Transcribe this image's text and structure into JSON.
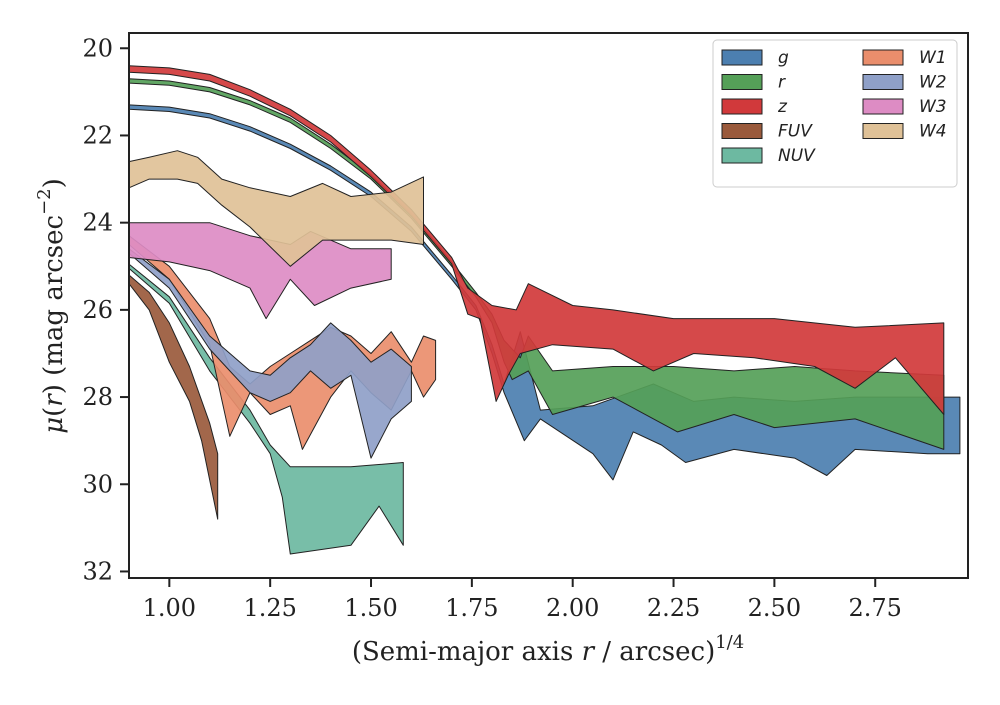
{
  "chart_data": {
    "type": "area",
    "xlabel": "(Semi-major axis r / arcsec)^{1/4}",
    "xlabel_parts": {
      "prefix": "(Semi-major axis ",
      "var": "r",
      "suffix": " / arcsec)",
      "sup": "1/4"
    },
    "ylabel": "μ(r) (mag arcsec^−2)",
    "ylabel_parts": {
      "mu": "μ",
      "open": "(",
      "var": "r",
      "close_and_units": ") (mag arcsec",
      "sup": "−2",
      "end": ")"
    },
    "xlim": [
      0.9,
      2.98
    ],
    "ylim": [
      32.15,
      19.65
    ],
    "y_inverted": true,
    "xticks": [
      1.0,
      1.25,
      1.5,
      1.75,
      2.0,
      2.25,
      2.5,
      2.75
    ],
    "xtick_labels": [
      "1.00",
      "1.25",
      "1.50",
      "1.75",
      "2.00",
      "2.25",
      "2.50",
      "2.75"
    ],
    "yticks": [
      20,
      22,
      24,
      26,
      28,
      30,
      32
    ],
    "ytick_labels": [
      "20",
      "22",
      "24",
      "26",
      "28",
      "30",
      "32"
    ],
    "grid": false,
    "legend_position": "top-right",
    "legend_columns": 2,
    "series": [
      {
        "name": "g",
        "color": "#4c7fb0",
        "upper": [
          [
            0.9,
            21.3
          ],
          [
            1.0,
            21.35
          ],
          [
            1.1,
            21.5
          ],
          [
            1.2,
            21.8
          ],
          [
            1.3,
            22.2
          ],
          [
            1.4,
            22.7
          ],
          [
            1.5,
            23.3
          ],
          [
            1.6,
            24.1
          ],
          [
            1.7,
            25.2
          ],
          [
            1.76,
            25.9
          ],
          [
            1.8,
            26.8
          ],
          [
            1.83,
            27.7
          ],
          [
            1.87,
            26.5
          ],
          [
            1.92,
            28.3
          ],
          [
            2.05,
            28.2
          ],
          [
            2.2,
            27.7
          ],
          [
            2.3,
            28.1
          ],
          [
            2.4,
            28.0
          ],
          [
            2.55,
            28.1
          ],
          [
            2.7,
            28.0
          ],
          [
            2.88,
            28.0
          ],
          [
            2.92,
            28.0
          ],
          [
            2.96,
            28.0
          ]
        ],
        "lower": [
          [
            0.9,
            21.4
          ],
          [
            1.0,
            21.45
          ],
          [
            1.1,
            21.6
          ],
          [
            1.2,
            21.9
          ],
          [
            1.3,
            22.3
          ],
          [
            1.4,
            22.8
          ],
          [
            1.5,
            23.4
          ],
          [
            1.6,
            24.2
          ],
          [
            1.7,
            25.3
          ],
          [
            1.76,
            26.0
          ],
          [
            1.8,
            27.0
          ],
          [
            1.83,
            27.9
          ],
          [
            1.88,
            29.0
          ],
          [
            1.92,
            28.5
          ],
          [
            2.05,
            29.3
          ],
          [
            2.1,
            29.9
          ],
          [
            2.15,
            28.8
          ],
          [
            2.22,
            29.1
          ],
          [
            2.28,
            29.5
          ],
          [
            2.4,
            29.2
          ],
          [
            2.55,
            29.4
          ],
          [
            2.63,
            29.8
          ],
          [
            2.7,
            29.2
          ],
          [
            2.88,
            29.3
          ],
          [
            2.96,
            29.3
          ]
        ]
      },
      {
        "name": "r",
        "color": "#55a058",
        "upper": [
          [
            0.9,
            20.7
          ],
          [
            1.0,
            20.75
          ],
          [
            1.1,
            20.9
          ],
          [
            1.2,
            21.2
          ],
          [
            1.3,
            21.6
          ],
          [
            1.4,
            22.2
          ],
          [
            1.5,
            22.9
          ],
          [
            1.6,
            23.8
          ],
          [
            1.7,
            24.9
          ],
          [
            1.76,
            25.6
          ],
          [
            1.8,
            26.1
          ],
          [
            1.83,
            26.7
          ],
          [
            1.87,
            27.1
          ],
          [
            1.89,
            26.6
          ],
          [
            1.95,
            27.4
          ],
          [
            2.1,
            27.3
          ],
          [
            2.25,
            27.3
          ],
          [
            2.4,
            27.4
          ],
          [
            2.55,
            27.3
          ],
          [
            2.7,
            27.4
          ],
          [
            2.92,
            27.5
          ]
        ],
        "lower": [
          [
            0.9,
            20.8
          ],
          [
            1.0,
            20.85
          ],
          [
            1.1,
            21.0
          ],
          [
            1.2,
            21.3
          ],
          [
            1.3,
            21.7
          ],
          [
            1.4,
            22.3
          ],
          [
            1.5,
            23.0
          ],
          [
            1.6,
            23.9
          ],
          [
            1.7,
            25.0
          ],
          [
            1.76,
            25.7
          ],
          [
            1.8,
            26.3
          ],
          [
            1.83,
            27.2
          ],
          [
            1.85,
            27.6
          ],
          [
            1.89,
            27.4
          ],
          [
            1.95,
            28.4
          ],
          [
            2.1,
            28.0
          ],
          [
            2.26,
            28.8
          ],
          [
            2.4,
            28.4
          ],
          [
            2.5,
            28.7
          ],
          [
            2.7,
            28.5
          ],
          [
            2.92,
            29.2
          ]
        ]
      },
      {
        "name": "z",
        "color": "#d1393b",
        "upper": [
          [
            0.9,
            20.4
          ],
          [
            1.0,
            20.45
          ],
          [
            1.1,
            20.6
          ],
          [
            1.2,
            20.95
          ],
          [
            1.3,
            21.4
          ],
          [
            1.4,
            22.0
          ],
          [
            1.5,
            22.8
          ],
          [
            1.6,
            23.7
          ],
          [
            1.7,
            24.8
          ],
          [
            1.74,
            25.5
          ],
          [
            1.8,
            25.9
          ],
          [
            1.86,
            26.0
          ],
          [
            1.89,
            25.4
          ],
          [
            2.0,
            25.9
          ],
          [
            2.1,
            26.0
          ],
          [
            2.25,
            26.2
          ],
          [
            2.5,
            26.2
          ],
          [
            2.7,
            26.4
          ],
          [
            2.92,
            26.3
          ]
        ],
        "lower": [
          [
            0.9,
            20.55
          ],
          [
            1.0,
            20.6
          ],
          [
            1.1,
            20.75
          ],
          [
            1.2,
            21.1
          ],
          [
            1.3,
            21.55
          ],
          [
            1.4,
            22.15
          ],
          [
            1.5,
            22.95
          ],
          [
            1.6,
            23.85
          ],
          [
            1.7,
            24.95
          ],
          [
            1.74,
            26.1
          ],
          [
            1.77,
            26.2
          ],
          [
            1.81,
            28.1
          ],
          [
            1.84,
            27.5
          ],
          [
            1.87,
            27.0
          ],
          [
            1.95,
            26.8
          ],
          [
            2.1,
            26.9
          ],
          [
            2.2,
            27.4
          ],
          [
            2.3,
            27.0
          ],
          [
            2.45,
            27.1
          ],
          [
            2.6,
            27.3
          ],
          [
            2.7,
            27.8
          ],
          [
            2.8,
            27.1
          ],
          [
            2.92,
            28.4
          ]
        ]
      },
      {
        "name": "FUV",
        "color": "#9a5a3c",
        "upper": [
          [
            0.9,
            25.2
          ],
          [
            0.95,
            25.6
          ],
          [
            1.0,
            26.3
          ],
          [
            1.05,
            27.3
          ],
          [
            1.1,
            28.6
          ],
          [
            1.12,
            29.3
          ]
        ],
        "lower": [
          [
            0.9,
            25.4
          ],
          [
            0.95,
            26.0
          ],
          [
            1.0,
            27.2
          ],
          [
            1.05,
            28.1
          ],
          [
            1.08,
            29.0
          ],
          [
            1.12,
            30.8
          ]
        ]
      },
      {
        "name": "NUV",
        "color": "#6db9a1",
        "upper": [
          [
            0.9,
            24.95
          ],
          [
            1.0,
            25.7
          ],
          [
            1.1,
            27.1
          ],
          [
            1.2,
            28.3
          ],
          [
            1.25,
            29.1
          ],
          [
            1.3,
            29.6
          ],
          [
            1.45,
            29.6
          ],
          [
            1.58,
            29.5
          ]
        ],
        "lower": [
          [
            0.9,
            25.05
          ],
          [
            1.0,
            25.85
          ],
          [
            1.1,
            27.4
          ],
          [
            1.2,
            28.6
          ],
          [
            1.25,
            29.3
          ],
          [
            1.28,
            30.3
          ],
          [
            1.3,
            31.6
          ],
          [
            1.45,
            31.4
          ],
          [
            1.52,
            30.5
          ],
          [
            1.58,
            31.4
          ]
        ]
      },
      {
        "name": "W1",
        "color": "#ea8e6c",
        "upper": [
          [
            0.9,
            24.3
          ],
          [
            1.0,
            25.0
          ],
          [
            1.1,
            26.2
          ],
          [
            1.15,
            27.3
          ],
          [
            1.2,
            27.7
          ],
          [
            1.25,
            27.3
          ],
          [
            1.3,
            27.0
          ],
          [
            1.35,
            26.7
          ],
          [
            1.4,
            26.4
          ],
          [
            1.45,
            26.6
          ],
          [
            1.5,
            27.0
          ],
          [
            1.55,
            26.5
          ],
          [
            1.6,
            27.2
          ],
          [
            1.63,
            26.6
          ],
          [
            1.66,
            26.7
          ]
        ],
        "lower": [
          [
            0.9,
            24.5
          ],
          [
            1.0,
            25.3
          ],
          [
            1.1,
            26.8
          ],
          [
            1.15,
            28.9
          ],
          [
            1.2,
            27.9
          ],
          [
            1.25,
            28.4
          ],
          [
            1.3,
            28.2
          ],
          [
            1.33,
            29.2
          ],
          [
            1.4,
            28.0
          ],
          [
            1.45,
            27.4
          ],
          [
            1.5,
            27.9
          ],
          [
            1.55,
            28.3
          ],
          [
            1.6,
            27.4
          ],
          [
            1.63,
            28.0
          ],
          [
            1.66,
            27.6
          ]
        ]
      },
      {
        "name": "W2",
        "color": "#8fa0c8",
        "upper": [
          [
            0.9,
            24.6
          ],
          [
            1.0,
            25.3
          ],
          [
            1.1,
            26.6
          ],
          [
            1.2,
            27.4
          ],
          [
            1.25,
            27.5
          ],
          [
            1.3,
            27.1
          ],
          [
            1.35,
            26.8
          ],
          [
            1.4,
            26.3
          ],
          [
            1.45,
            26.7
          ],
          [
            1.5,
            27.2
          ],
          [
            1.55,
            26.9
          ],
          [
            1.6,
            27.3
          ]
        ],
        "lower": [
          [
            0.9,
            24.7
          ],
          [
            1.0,
            25.5
          ],
          [
            1.1,
            26.9
          ],
          [
            1.2,
            27.9
          ],
          [
            1.25,
            28.1
          ],
          [
            1.3,
            27.9
          ],
          [
            1.35,
            27.4
          ],
          [
            1.4,
            27.8
          ],
          [
            1.45,
            27.5
          ],
          [
            1.5,
            29.4
          ],
          [
            1.55,
            28.5
          ],
          [
            1.6,
            28.1
          ]
        ]
      },
      {
        "name": "W3",
        "color": "#dd8cc4",
        "upper": [
          [
            0.9,
            24.0
          ],
          [
            1.0,
            24.0
          ],
          [
            1.1,
            24.0
          ],
          [
            1.2,
            24.3
          ],
          [
            1.3,
            24.5
          ],
          [
            1.35,
            24.2
          ],
          [
            1.45,
            24.6
          ],
          [
            1.55,
            24.6
          ]
        ],
        "lower": [
          [
            0.9,
            24.8
          ],
          [
            1.0,
            24.9
          ],
          [
            1.1,
            25.1
          ],
          [
            1.2,
            25.5
          ],
          [
            1.24,
            26.2
          ],
          [
            1.3,
            25.3
          ],
          [
            1.36,
            25.9
          ],
          [
            1.45,
            25.5
          ],
          [
            1.55,
            25.3
          ]
        ]
      },
      {
        "name": "W4",
        "color": "#dfc197",
        "upper": [
          [
            0.9,
            22.6
          ],
          [
            0.95,
            22.5
          ],
          [
            1.02,
            22.35
          ],
          [
            1.07,
            22.5
          ],
          [
            1.13,
            23.0
          ],
          [
            1.2,
            23.2
          ],
          [
            1.3,
            23.4
          ],
          [
            1.38,
            23.1
          ],
          [
            1.45,
            23.4
          ],
          [
            1.55,
            23.3
          ],
          [
            1.63,
            22.95
          ]
        ],
        "lower": [
          [
            0.9,
            23.2
          ],
          [
            0.95,
            23.0
          ],
          [
            1.02,
            23.0
          ],
          [
            1.07,
            23.1
          ],
          [
            1.13,
            23.6
          ],
          [
            1.2,
            24.1
          ],
          [
            1.3,
            25.0
          ],
          [
            1.38,
            24.4
          ],
          [
            1.45,
            24.4
          ],
          [
            1.55,
            24.4
          ],
          [
            1.63,
            24.5
          ]
        ]
      }
    ]
  }
}
